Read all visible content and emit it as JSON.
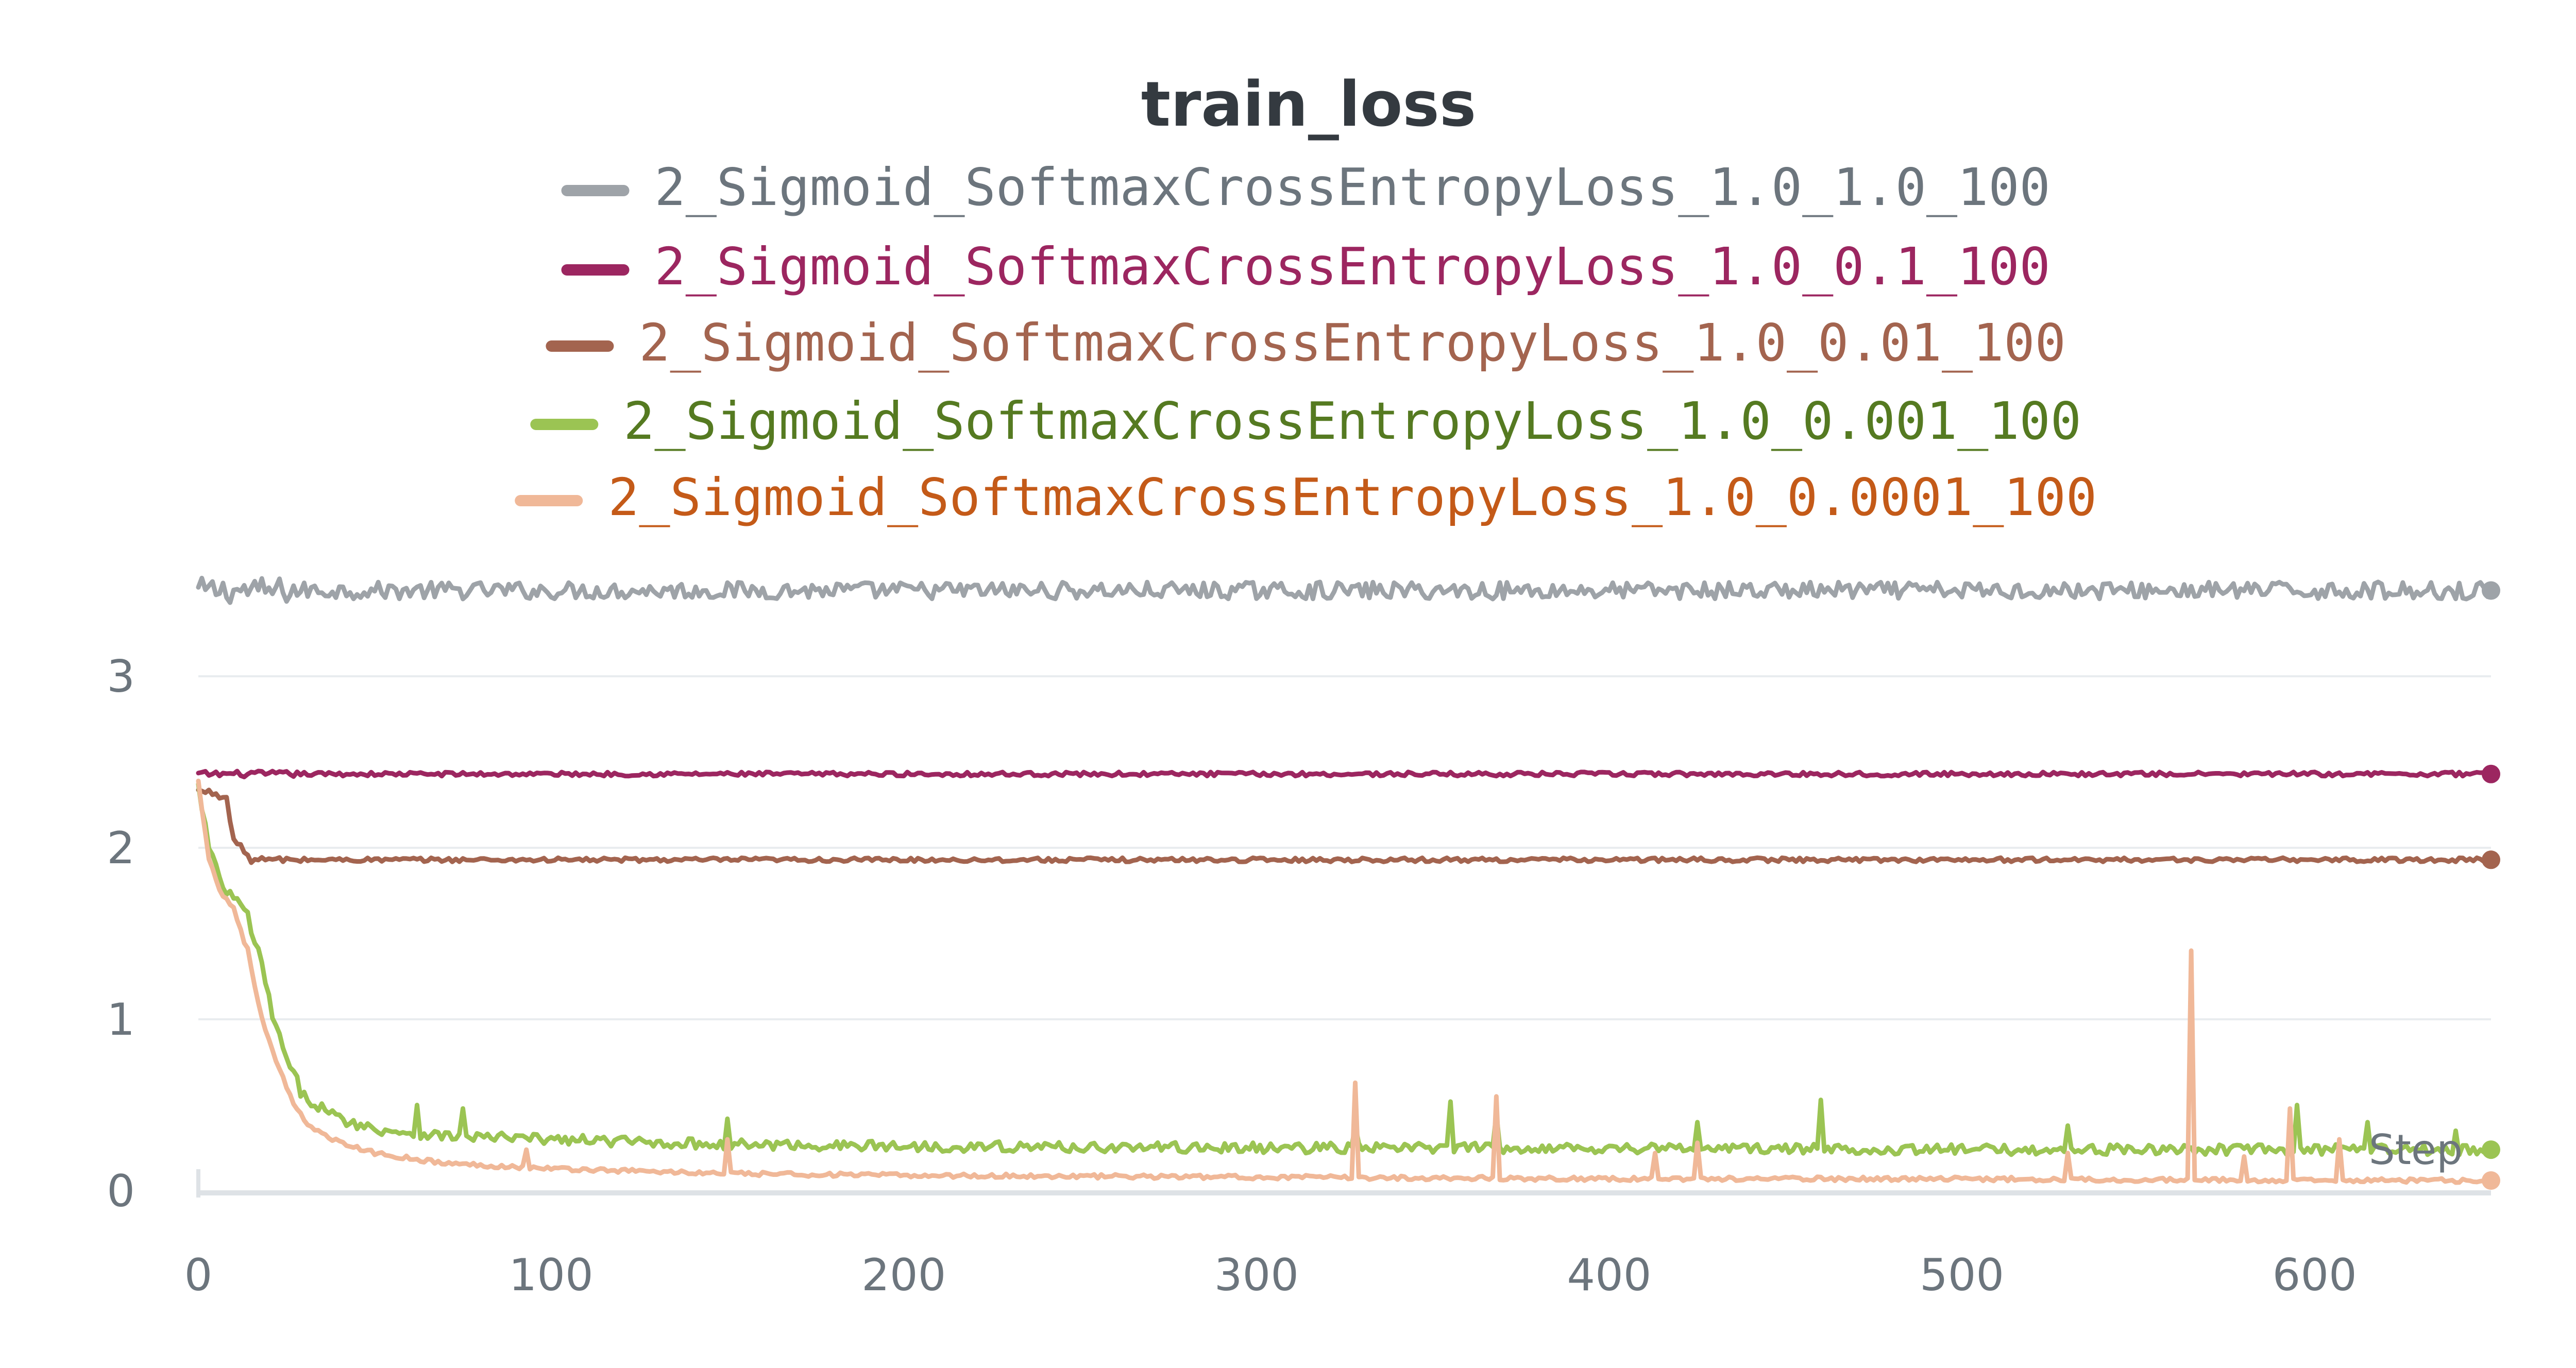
{
  "chart_data": {
    "type": "line",
    "title": "train_loss",
    "xlabel": "Step",
    "ylabel": "",
    "xlim": [
      0,
      650
    ],
    "ylim": [
      -0.05,
      3.75
    ],
    "xticks": [
      0,
      100,
      200,
      300,
      400,
      500,
      600
    ],
    "yticks": [
      0,
      1,
      2,
      3
    ],
    "grid": true,
    "legend_position": "top-center",
    "series": [
      {
        "name": "2_Sigmoid_SoftmaxCrossEntropyLoss_1.0_1.0_100",
        "color": "#9ea3a8",
        "legend_text_color": "#6c757d",
        "x": [
          0,
          650
        ],
        "y": [
          3.5,
          3.5
        ],
        "noise": 0.05
      },
      {
        "name": "2_Sigmoid_SoftmaxCrossEntropyLoss_1.0_0.1_100",
        "color": "#9c2660",
        "legend_text_color": "#9c2660",
        "x": [
          0,
          650
        ],
        "y": [
          2.43,
          2.43
        ],
        "noise": 0.012
      },
      {
        "name": "2_Sigmoid_SoftmaxCrossEntropyLoss_1.0_0.01_100",
        "color": "#a3644f",
        "legend_text_color": "#a3644f",
        "x": [
          0,
          5,
          8,
          10,
          15,
          650
        ],
        "y": [
          2.33,
          2.32,
          2.28,
          2.05,
          1.93,
          1.93
        ],
        "noise": 0.012
      },
      {
        "name": "2_Sigmoid_SoftmaxCrossEntropyLoss_1.0_0.001_100",
        "color": "#9bc453",
        "legend_text_color": "#557a21",
        "x": [
          0,
          3,
          6,
          10,
          14,
          18,
          22,
          26,
          30,
          40,
          50,
          70,
          100,
          150,
          200,
          300,
          400,
          500,
          600,
          650
        ],
        "y": [
          2.35,
          2.0,
          1.8,
          1.7,
          1.6,
          1.3,
          0.95,
          0.7,
          0.55,
          0.42,
          0.36,
          0.32,
          0.3,
          0.27,
          0.26,
          0.25,
          0.25,
          0.24,
          0.24,
          0.24
        ],
        "noise": 0.03,
        "spikes": [
          [
            62,
            0.5
          ],
          [
            75,
            0.48
          ],
          [
            150,
            0.42
          ],
          [
            328,
            0.38
          ],
          [
            355,
            0.52
          ],
          [
            368,
            0.45
          ],
          [
            425,
            0.4
          ],
          [
            460,
            0.53
          ],
          [
            530,
            0.38
          ],
          [
            595,
            0.5
          ],
          [
            615,
            0.4
          ],
          [
            640,
            0.35
          ]
        ]
      },
      {
        "name": "2_Sigmoid_SoftmaxCrossEntropyLoss_1.0_0.0001_100",
        "color": "#f0b898",
        "legend_text_color": "#c45a18",
        "x": [
          0,
          3,
          6,
          10,
          14,
          18,
          22,
          26,
          30,
          40,
          50,
          70,
          100,
          150,
          200,
          300,
          400,
          500,
          600,
          650
        ],
        "y": [
          2.38,
          1.95,
          1.75,
          1.65,
          1.4,
          1.0,
          0.75,
          0.55,
          0.4,
          0.28,
          0.22,
          0.16,
          0.13,
          0.1,
          0.09,
          0.08,
          0.07,
          0.07,
          0.06,
          0.06
        ],
        "noise": 0.012,
        "spikes": [
          [
            93,
            0.24
          ],
          [
            150,
            0.3
          ],
          [
            328,
            0.63
          ],
          [
            368,
            0.55
          ],
          [
            413,
            0.22
          ],
          [
            425,
            0.28
          ],
          [
            530,
            0.22
          ],
          [
            565,
            1.4
          ],
          [
            580,
            0.2
          ],
          [
            593,
            0.48
          ],
          [
            607,
            0.3
          ]
        ]
      }
    ]
  }
}
